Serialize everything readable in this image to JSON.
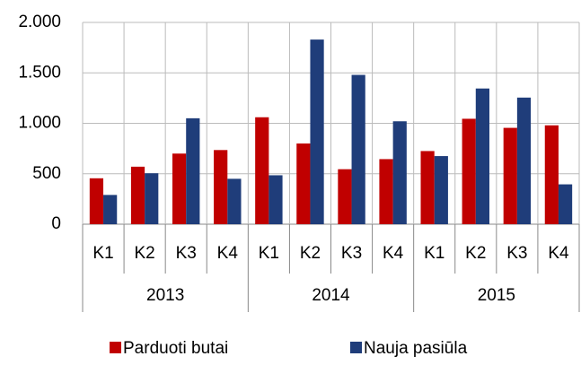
{
  "chart_data": {
    "type": "bar",
    "categories": [
      "K1",
      "K2",
      "K3",
      "K4",
      "K1",
      "K2",
      "K3",
      "K4",
      "K1",
      "K2",
      "K3",
      "K4"
    ],
    "groups": [
      "2013",
      "2014",
      "2015"
    ],
    "series": [
      {
        "name": "Parduoti butai",
        "color": "#c00000",
        "values": [
          455,
          570,
          700,
          735,
          1060,
          800,
          545,
          645,
          725,
          1045,
          955,
          980
        ]
      },
      {
        "name": "Nauja pasiūla",
        "color": "#1f3d7a",
        "values": [
          290,
          505,
          1050,
          450,
          485,
          1830,
          1480,
          1020,
          675,
          1345,
          1255,
          395
        ]
      }
    ],
    "ylim": [
      0,
      2000
    ],
    "yticks": [
      0,
      500,
      {
        "value": 1000,
        "label": "1.000"
      },
      {
        "value": 1500,
        "label": "1.500"
      },
      {
        "value": 2000,
        "label": "2.000"
      }
    ],
    "grid": true,
    "legend": "bottom"
  }
}
